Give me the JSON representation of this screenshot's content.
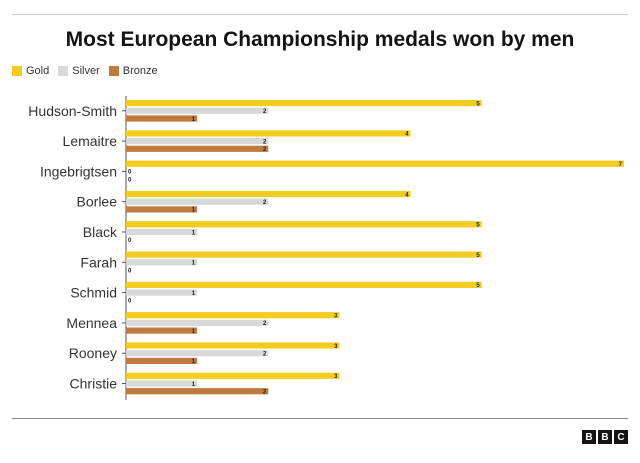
{
  "chart_data": {
    "type": "bar",
    "orientation": "horizontal",
    "title": "Most European Championship medals won by men",
    "categories": [
      "Hudson-Smith",
      "Lemaitre",
      "Ingebrigtsen",
      "Borlee",
      "Black",
      "Farah",
      "Schmid",
      "Mennea",
      "Rooney",
      "Christie"
    ],
    "series": [
      {
        "name": "Gold",
        "color": "#f2cd1f",
        "values": [
          5,
          4,
          7,
          4,
          5,
          5,
          5,
          3,
          3,
          3
        ]
      },
      {
        "name": "Silver",
        "color": "#d8d8d8",
        "values": [
          2,
          2,
          0,
          2,
          1,
          1,
          1,
          2,
          2,
          1
        ]
      },
      {
        "name": "Bronze",
        "color": "#c07a3e",
        "values": [
          1,
          2,
          0,
          1,
          0,
          0,
          0,
          1,
          1,
          2
        ]
      }
    ],
    "xlim": [
      0,
      7
    ],
    "grid": false,
    "legend_position": "top-left",
    "data_labels": true
  },
  "branding": {
    "letters": [
      "B",
      "B",
      "C"
    ]
  }
}
